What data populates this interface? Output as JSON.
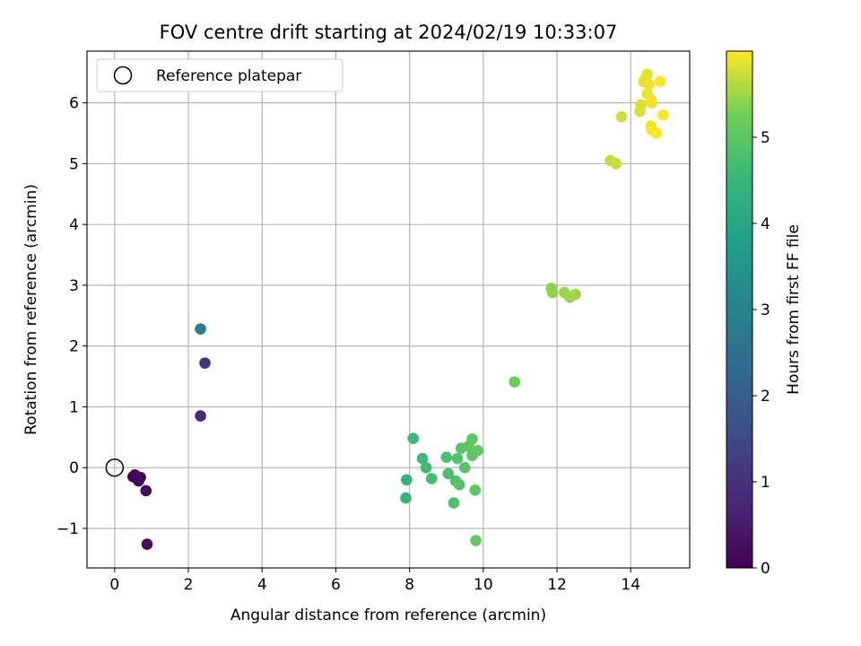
{
  "chart_data": {
    "type": "scatter",
    "title": "FOV centre drift starting at 2024/02/19 10:33:07",
    "xlabel": "Angular distance from reference (arcmin)",
    "ylabel": "Rotation from reference (arcmin)",
    "xlim": [
      -0.75,
      15.6
    ],
    "ylim": [
      -1.65,
      6.85
    ],
    "xticks": [
      0,
      2,
      4,
      6,
      8,
      10,
      12,
      14
    ],
    "yticks": [
      -1,
      0,
      1,
      2,
      3,
      4,
      5,
      6
    ],
    "grid": true,
    "legend": {
      "placement": "upper-left",
      "entries": [
        "Reference platepar"
      ]
    },
    "reference": {
      "x": 0,
      "y": 0,
      "label": "Reference platepar"
    },
    "colorbar": {
      "label": "Hours from first FF file",
      "colormap": "viridis",
      "range": [
        0,
        6.0
      ],
      "ticks": [
        0,
        1,
        2,
        3,
        4,
        5
      ]
    },
    "points": [
      {
        "x": 0.5,
        "y": -0.15,
        "h": 0.05
      },
      {
        "x": 0.55,
        "y": -0.12,
        "h": 0.08
      },
      {
        "x": 0.6,
        "y": -0.18,
        "h": 0.1
      },
      {
        "x": 0.65,
        "y": -0.22,
        "h": 0.12
      },
      {
        "x": 0.7,
        "y": -0.16,
        "h": 0.15
      },
      {
        "x": 0.85,
        "y": -0.38,
        "h": 0.2
      },
      {
        "x": 0.88,
        "y": -1.26,
        "h": 0.25
      },
      {
        "x": 2.33,
        "y": 0.85,
        "h": 0.8
      },
      {
        "x": 2.45,
        "y": 1.72,
        "h": 1.0
      },
      {
        "x": 2.33,
        "y": 2.28,
        "h": 2.9
      },
      {
        "x": 7.9,
        "y": -0.5,
        "h": 4.4
      },
      {
        "x": 7.92,
        "y": -0.2,
        "h": 4.4
      },
      {
        "x": 8.1,
        "y": 0.48,
        "h": 4.55
      },
      {
        "x": 8.35,
        "y": 0.15,
        "h": 4.6
      },
      {
        "x": 8.45,
        "y": 0.0,
        "h": 4.65
      },
      {
        "x": 8.6,
        "y": -0.18,
        "h": 4.7
      },
      {
        "x": 9.0,
        "y": 0.17,
        "h": 4.75
      },
      {
        "x": 9.05,
        "y": -0.1,
        "h": 4.8
      },
      {
        "x": 9.2,
        "y": -0.58,
        "h": 4.85
      },
      {
        "x": 9.25,
        "y": -0.22,
        "h": 4.85
      },
      {
        "x": 9.3,
        "y": 0.15,
        "h": 4.9
      },
      {
        "x": 9.35,
        "y": -0.28,
        "h": 4.9
      },
      {
        "x": 9.4,
        "y": 0.32,
        "h": 4.95
      },
      {
        "x": 9.5,
        "y": 0.0,
        "h": 4.95
      },
      {
        "x": 9.6,
        "y": 0.35,
        "h": 5.0
      },
      {
        "x": 9.7,
        "y": 0.2,
        "h": 5.0
      },
      {
        "x": 9.7,
        "y": 0.47,
        "h": 5.05
      },
      {
        "x": 9.78,
        "y": -0.37,
        "h": 5.05
      },
      {
        "x": 9.8,
        "y": -1.2,
        "h": 5.1
      },
      {
        "x": 9.85,
        "y": 0.28,
        "h": 5.1
      },
      {
        "x": 10.85,
        "y": 1.41,
        "h": 5.2
      },
      {
        "x": 11.85,
        "y": 2.95,
        "h": 5.4
      },
      {
        "x": 11.88,
        "y": 2.88,
        "h": 5.42
      },
      {
        "x": 12.2,
        "y": 2.88,
        "h": 5.45
      },
      {
        "x": 12.35,
        "y": 2.8,
        "h": 5.48
      },
      {
        "x": 12.5,
        "y": 2.85,
        "h": 5.5
      },
      {
        "x": 13.45,
        "y": 5.05,
        "h": 5.7
      },
      {
        "x": 13.6,
        "y": 5.0,
        "h": 5.72
      },
      {
        "x": 13.75,
        "y": 5.77,
        "h": 5.75
      },
      {
        "x": 14.25,
        "y": 5.86,
        "h": 5.8
      },
      {
        "x": 14.28,
        "y": 5.97,
        "h": 5.82
      },
      {
        "x": 14.35,
        "y": 6.35,
        "h": 5.85
      },
      {
        "x": 14.4,
        "y": 6.4,
        "h": 5.87
      },
      {
        "x": 14.45,
        "y": 6.47,
        "h": 5.88
      },
      {
        "x": 14.5,
        "y": 6.3,
        "h": 5.9
      },
      {
        "x": 14.45,
        "y": 6.15,
        "h": 5.9
      },
      {
        "x": 14.55,
        "y": 6.05,
        "h": 5.92
      },
      {
        "x": 14.58,
        "y": 6.0,
        "h": 5.93
      },
      {
        "x": 14.55,
        "y": 5.62,
        "h": 5.94
      },
      {
        "x": 14.58,
        "y": 5.55,
        "h": 5.95
      },
      {
        "x": 14.7,
        "y": 5.5,
        "h": 5.96
      },
      {
        "x": 14.8,
        "y": 6.35,
        "h": 5.98
      },
      {
        "x": 14.88,
        "y": 5.8,
        "h": 6.0
      }
    ]
  }
}
